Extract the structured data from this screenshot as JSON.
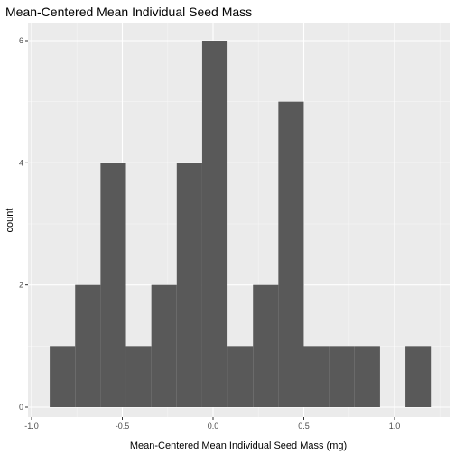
{
  "chart_data": {
    "type": "bar",
    "title": "Mean-Centered Mean Individual Seed Mass",
    "xlabel": "Mean-Centered Mean Individual Seed Mass (mg)",
    "ylabel": "count",
    "xlim": [
      -1.0,
      1.2
    ],
    "ylim": [
      0,
      6.3
    ],
    "x_ticks": [
      -1.0,
      -0.5,
      0.0,
      0.5,
      1.0
    ],
    "x_tick_labels": [
      "-1.0",
      "-0.5",
      "0.0",
      "0.5",
      "1.0"
    ],
    "y_ticks": [
      0,
      2,
      4,
      6
    ],
    "y_tick_labels": [
      "0",
      "2",
      "4",
      "6"
    ],
    "bins": [
      {
        "x0": -0.9,
        "x1": -0.76,
        "count": 1
      },
      {
        "x0": -0.76,
        "x1": -0.62,
        "count": 2
      },
      {
        "x0": -0.62,
        "x1": -0.48,
        "count": 4
      },
      {
        "x0": -0.48,
        "x1": -0.34,
        "count": 1
      },
      {
        "x0": -0.34,
        "x1": -0.2,
        "count": 2
      },
      {
        "x0": -0.2,
        "x1": -0.06,
        "count": 4
      },
      {
        "x0": -0.06,
        "x1": 0.08,
        "count": 6
      },
      {
        "x0": 0.08,
        "x1": 0.22,
        "count": 1
      },
      {
        "x0": 0.22,
        "x1": 0.36,
        "count": 2
      },
      {
        "x0": 0.36,
        "x1": 0.5,
        "count": 5
      },
      {
        "x0": 0.5,
        "x1": 0.64,
        "count": 1
      },
      {
        "x0": 0.64,
        "x1": 0.78,
        "count": 1
      },
      {
        "x0": 0.78,
        "x1": 0.92,
        "count": 1
      },
      {
        "x0": 0.92,
        "x1": 1.06,
        "count": 0
      },
      {
        "x0": 1.06,
        "x1": 1.2,
        "count": 1
      }
    ],
    "grid": true,
    "colors": {
      "panel_background": "#ebebeb",
      "grid_major": "#ffffff",
      "grid_minor": "#f5f5f5",
      "bar_fill": "#595959"
    }
  }
}
